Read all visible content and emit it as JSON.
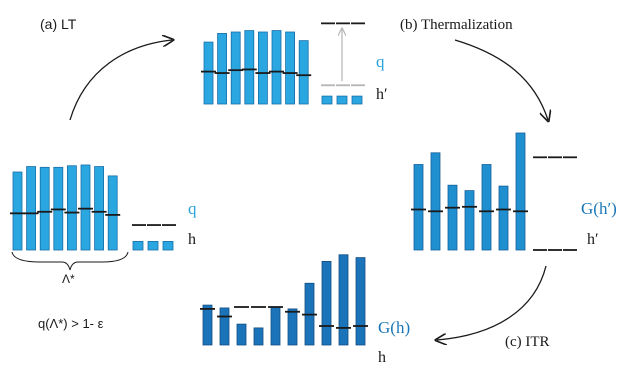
{
  "colors": {
    "light_blue": "#2aa7e0",
    "mid_blue": "#1f8fd0",
    "dark_blue": "#1b74ba",
    "ink": "#1a1a1a",
    "gray": "#b5b5b5",
    "label_blue": "#29a3dc",
    "label_dark_blue": "#1a77b8"
  },
  "labels": {
    "lt": "(a)  LT",
    "thermalization": "(b)  Thermalization",
    "itr": "(c)  ITR",
    "q_left": "q",
    "h_left": "h",
    "lambda": "Λ*",
    "condition": "q(Λ*) > 1- ε",
    "q_top": "q",
    "h_prime_top": "h′",
    "g_h_prime": "G(h′)",
    "h_prime_right": "h′",
    "g_h": "G(h)",
    "h_bottom": "h"
  },
  "chart_data": [
    {
      "type": "bar",
      "panel": "left",
      "bars": [
        1.0,
        1.07,
        1.06,
        1.06,
        1.08,
        1.09,
        1.07,
        0.95
      ],
      "markers": [
        0.47,
        0.47,
        0.49,
        0.52,
        0.48,
        0.53,
        0.49,
        0.45
      ],
      "small_bars": [
        0.11,
        0.11,
        0.11
      ],
      "small_markers": [
        0.32,
        0.32,
        0.32
      ]
    },
    {
      "type": "bar",
      "panel": "top",
      "bars": [
        0.86,
        0.98,
        1.0,
        1.02,
        1.0,
        1.02,
        1.0,
        0.88
      ],
      "markers": [
        0.45,
        0.43,
        0.47,
        0.48,
        0.43,
        0.45,
        0.43,
        0.4
      ],
      "small_bars": [
        0.11,
        0.11,
        0.11
      ],
      "small_markers_top": [
        1.12,
        1.12,
        1.12
      ],
      "small_markers_gray": [
        0.26,
        0.26,
        0.26
      ]
    },
    {
      "type": "bar",
      "panel": "right",
      "bars": [
        0.95,
        1.08,
        0.72,
        0.66,
        0.95,
        0.71,
        1.3
      ],
      "markers": [
        0.45,
        0.43,
        0.47,
        0.48,
        0.43,
        0.45,
        0.43
      ],
      "right_markers": [
        1.03,
        1.03,
        1.03
      ],
      "bottom_dashes": [
        0.0,
        0.0,
        0.0
      ]
    },
    {
      "type": "bar",
      "panel": "bottom",
      "bars": [
        0.42,
        0.39,
        0.22,
        0.18,
        0.4,
        0.38,
        0.65,
        0.88,
        0.95,
        0.92
      ],
      "markers": [
        0.38,
        0.3,
        0.4,
        0.4,
        0.4,
        0.35,
        0.32,
        0.2,
        0.18,
        0.2
      ]
    }
  ]
}
